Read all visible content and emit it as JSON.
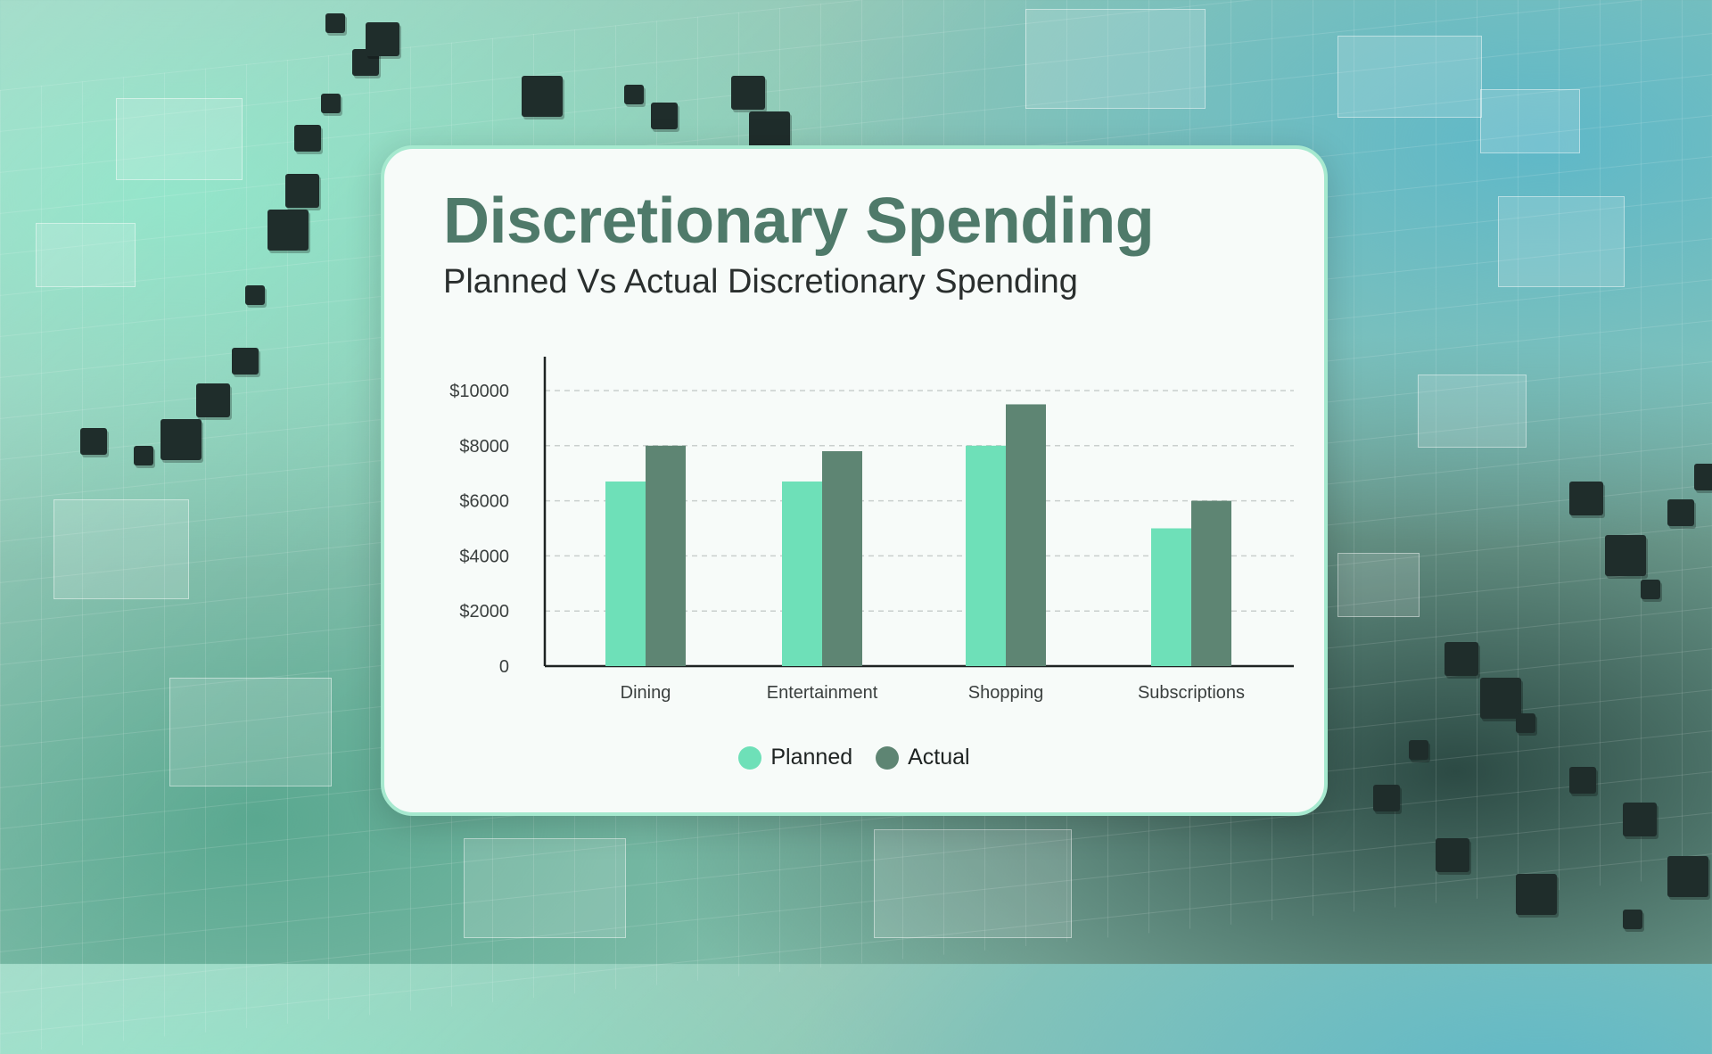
{
  "card": {
    "title": "Discretionary Spending",
    "subtitle": "Planned Vs Actual Discretionary Spending"
  },
  "colors": {
    "planned": "#6ee0b8",
    "actual": "#5e8573",
    "title": "#4f7a6a",
    "grid": "#c9cfcd",
    "axis": "#1e2322"
  },
  "chart_data": {
    "type": "bar",
    "categories": [
      "Dining",
      "Entertainment",
      "Shopping",
      "Subscriptions"
    ],
    "series": [
      {
        "name": "Planned",
        "values": [
          6700,
          6700,
          8000,
          5000
        ]
      },
      {
        "name": "Actual",
        "values": [
          8000,
          7800,
          9500,
          6000
        ]
      }
    ],
    "ylim": [
      0,
      10000
    ],
    "yticks": [
      0,
      2000,
      4000,
      6000,
      8000,
      10000
    ],
    "ytick_labels": [
      "0",
      "$2000",
      "$4000",
      "$6000",
      "$8000",
      "$10000"
    ],
    "grid": true,
    "legend": "bottom-center"
  }
}
